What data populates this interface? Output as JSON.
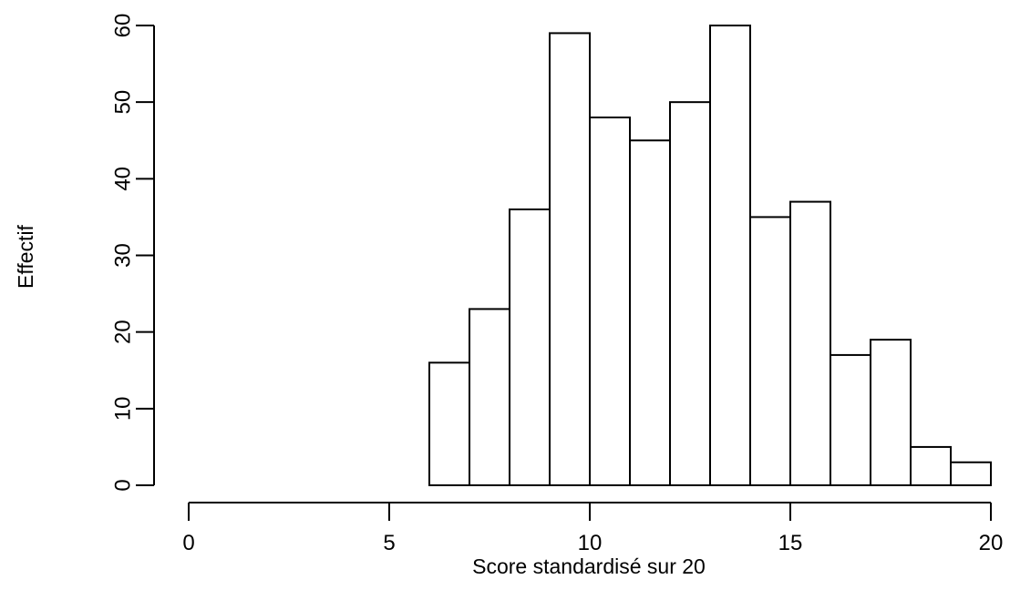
{
  "chart_data": {
    "type": "bar",
    "subtype": "histogram",
    "xlabel": "Score standardisé sur 20",
    "ylabel": "Effectif",
    "xlim": [
      0,
      20
    ],
    "ylim": [
      0,
      60
    ],
    "xticks": [
      0,
      5,
      10,
      15,
      20
    ],
    "yticks": [
      0,
      10,
      20,
      30,
      40,
      50,
      60
    ],
    "bins": [
      {
        "x0": 6,
        "x1": 7,
        "count": 16
      },
      {
        "x0": 7,
        "x1": 8,
        "count": 23
      },
      {
        "x0": 8,
        "x1": 9,
        "count": 36
      },
      {
        "x0": 9,
        "x1": 10,
        "count": 59
      },
      {
        "x0": 10,
        "x1": 11,
        "count": 48
      },
      {
        "x0": 11,
        "x1": 12,
        "count": 45
      },
      {
        "x0": 12,
        "x1": 13,
        "count": 50
      },
      {
        "x0": 13,
        "x1": 14,
        "count": 60
      },
      {
        "x0": 14,
        "x1": 15,
        "count": 35
      },
      {
        "x0": 15,
        "x1": 16,
        "count": 37
      },
      {
        "x0": 16,
        "x1": 17,
        "count": 17
      },
      {
        "x0": 17,
        "x1": 18,
        "count": 19
      },
      {
        "x0": 18,
        "x1": 19,
        "count": 5
      },
      {
        "x0": 19,
        "x1": 20,
        "count": 3
      }
    ],
    "grid": false,
    "legend": "none",
    "bar_fill": "#ffffff",
    "bar_stroke": "#000000"
  }
}
